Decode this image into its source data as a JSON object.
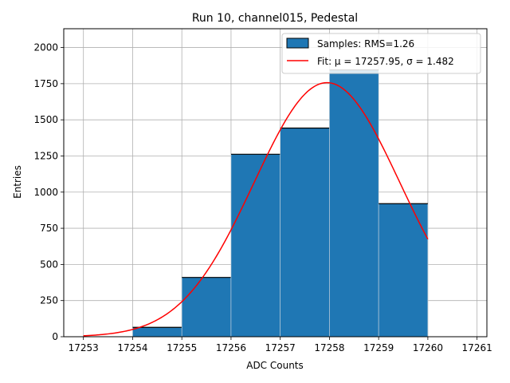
{
  "chart_data": {
    "type": "bar",
    "title": "Run 10, channel015, Pedestal",
    "xlabel": "ADC Counts",
    "ylabel": "Entries",
    "xlim": [
      17252.6,
      17261.2
    ],
    "ylim": [
      0,
      2130
    ],
    "x_ticks": [
      17253,
      17254,
      17255,
      17256,
      17257,
      17258,
      17259,
      17260,
      17261
    ],
    "y_ticks": [
      0,
      250,
      500,
      750,
      1000,
      1250,
      1500,
      1750,
      2000
    ],
    "grid": true,
    "legend_position": "top-right",
    "histogram": {
      "name": "Samples: RMS=1.26",
      "color": "#1f77b4",
      "bins": [
        {
          "x0": 17253,
          "x1": 17254,
          "value": 0
        },
        {
          "x0": 17254,
          "x1": 17255,
          "value": 65
        },
        {
          "x0": 17255,
          "x1": 17256,
          "value": 410
        },
        {
          "x0": 17256,
          "x1": 17257,
          "value": 1262
        },
        {
          "x0": 17257,
          "x1": 17258,
          "value": 1443
        },
        {
          "x0": 17258,
          "x1": 17259,
          "value": 1845
        },
        {
          "x0": 17259,
          "x1": 17260,
          "value": 920
        }
      ]
    },
    "fit": {
      "name": "Fit: μ = 17257.95, σ = 1.482",
      "color": "#ff0000",
      "mu": 17257.95,
      "sigma": 1.482,
      "amplitude": 1757,
      "x_range": [
        17253,
        17260
      ]
    }
  }
}
